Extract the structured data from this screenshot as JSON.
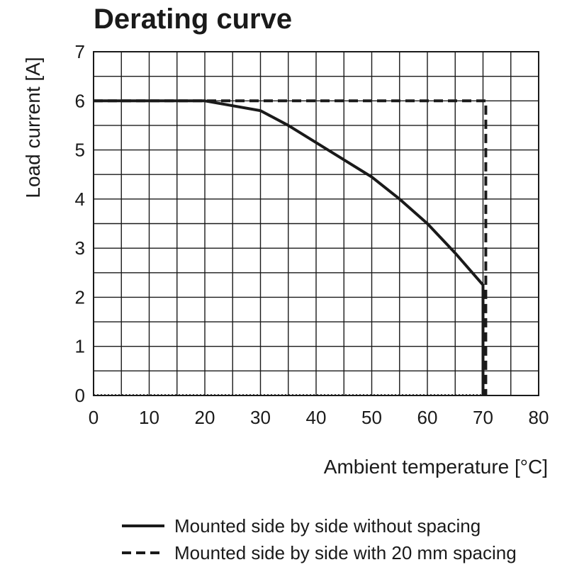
{
  "chart_data": {
    "type": "line",
    "title": "Derating curve",
    "xlabel": "Ambient temperature [°C]",
    "ylabel": "Load current [A]",
    "xlim": [
      0,
      80
    ],
    "ylim": [
      0,
      7
    ],
    "x_ticks": [
      "0",
      "10",
      "20",
      "30",
      "40",
      "50",
      "60",
      "70",
      "80"
    ],
    "y_ticks": [
      "0",
      "1",
      "2",
      "3",
      "4",
      "5",
      "6",
      "7"
    ],
    "x_tick_values": [
      0,
      10,
      20,
      30,
      40,
      50,
      60,
      70,
      80
    ],
    "y_tick_values": [
      0,
      1,
      2,
      3,
      4,
      5,
      6,
      7
    ],
    "x_grid_step": 5,
    "y_grid_step": 0.5,
    "grid": true,
    "legend_position": "bottom",
    "series": [
      {
        "name": "Mounted side by side without spacing",
        "style": "solid",
        "color": "#1a1a1a",
        "x": [
          0,
          20,
          25,
          30,
          35,
          40,
          45,
          50,
          55,
          60,
          65,
          70,
          70
        ],
        "y": [
          6.0,
          6.0,
          5.9,
          5.8,
          5.5,
          5.15,
          4.8,
          4.45,
          4.0,
          3.5,
          2.9,
          2.25,
          0
        ]
      },
      {
        "name": "Mounted side by side with 20 mm spacing",
        "style": "dashed",
        "color": "#1a1a1a",
        "x": [
          0,
          70.5,
          70.5
        ],
        "y": [
          6.0,
          6.0,
          0
        ]
      }
    ]
  }
}
